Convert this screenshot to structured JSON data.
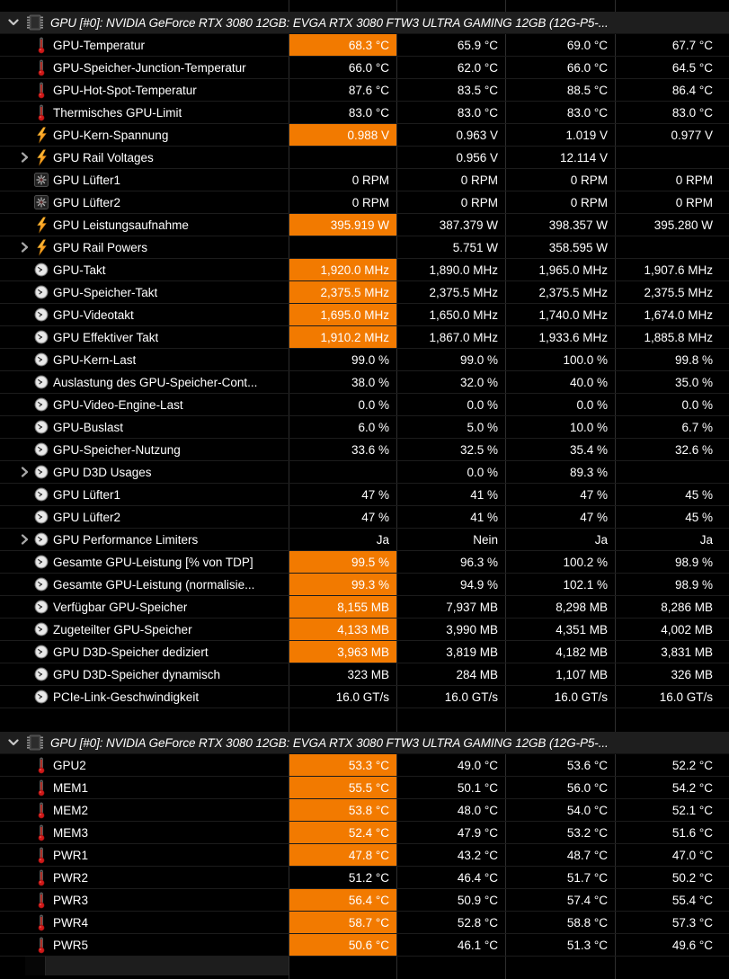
{
  "colors": {
    "highlight_orange": "#F27A00",
    "row_background": "#000000",
    "header_background": "#1E1E1E",
    "gridline": "#2E2E2E",
    "text": "#FFFFFF"
  },
  "column_meaning": [
    "current",
    "minimum",
    "maximum",
    "average"
  ],
  "sections": [
    {
      "header": "GPU [#0]: NVIDIA GeForce RTX 3080 12GB: EVGA RTX 3080 FTW3 ULTRA GAMING 12GB (12G-P5-...",
      "rows": [
        {
          "icon": "thermometer",
          "label": "GPU-Temperatur",
          "group": false,
          "hl": true,
          "values": [
            "68.3 °C",
            "65.9 °C",
            "69.0 °C",
            "67.7 °C"
          ]
        },
        {
          "icon": "thermometer",
          "label": "GPU-Speicher-Junction-Temperatur",
          "group": false,
          "hl": false,
          "values": [
            "66.0 °C",
            "62.0 °C",
            "66.0 °C",
            "64.5 °C"
          ]
        },
        {
          "icon": "thermometer",
          "label": "GPU-Hot-Spot-Temperatur",
          "group": false,
          "hl": false,
          "values": [
            "87.6 °C",
            "83.5 °C",
            "88.5 °C",
            "86.4 °C"
          ]
        },
        {
          "icon": "thermometer",
          "label": "Thermisches GPU-Limit",
          "group": false,
          "hl": false,
          "values": [
            "83.0 °C",
            "83.0 °C",
            "83.0 °C",
            "83.0 °C"
          ]
        },
        {
          "icon": "lightning",
          "label": "GPU-Kern-Spannung",
          "group": false,
          "hl": true,
          "values": [
            "0.988 V",
            "0.963 V",
            "1.019 V",
            "0.977 V"
          ]
        },
        {
          "icon": "lightning",
          "label": "GPU Rail Voltages",
          "group": true,
          "hl": false,
          "values": [
            "",
            "0.956 V",
            "12.114 V",
            ""
          ]
        },
        {
          "icon": "fan",
          "label": "GPU Lüfter1",
          "group": false,
          "hl": false,
          "values": [
            "0 RPM",
            "0 RPM",
            "0 RPM",
            "0 RPM"
          ]
        },
        {
          "icon": "fan",
          "label": "GPU Lüfter2",
          "group": false,
          "hl": false,
          "values": [
            "0 RPM",
            "0 RPM",
            "0 RPM",
            "0 RPM"
          ]
        },
        {
          "icon": "lightning",
          "label": "GPU Leistungsaufnahme",
          "group": false,
          "hl": true,
          "values": [
            "395.919 W",
            "387.379 W",
            "398.357 W",
            "395.280 W"
          ]
        },
        {
          "icon": "lightning",
          "label": "GPU Rail Powers",
          "group": true,
          "hl": false,
          "values": [
            "",
            "5.751 W",
            "358.595 W",
            ""
          ]
        },
        {
          "icon": "clock",
          "label": "GPU-Takt",
          "group": false,
          "hl": true,
          "values": [
            "1,920.0 MHz",
            "1,890.0 MHz",
            "1,965.0 MHz",
            "1,907.6 MHz"
          ]
        },
        {
          "icon": "clock",
          "label": "GPU-Speicher-Takt",
          "group": false,
          "hl": true,
          "values": [
            "2,375.5 MHz",
            "2,375.5 MHz",
            "2,375.5 MHz",
            "2,375.5 MHz"
          ]
        },
        {
          "icon": "clock",
          "label": "GPU-Videotakt",
          "group": false,
          "hl": true,
          "values": [
            "1,695.0 MHz",
            "1,650.0 MHz",
            "1,740.0 MHz",
            "1,674.0 MHz"
          ]
        },
        {
          "icon": "clock",
          "label": "GPU Effektiver Takt",
          "group": false,
          "hl": true,
          "values": [
            "1,910.2 MHz",
            "1,867.0 MHz",
            "1,933.6 MHz",
            "1,885.8 MHz"
          ]
        },
        {
          "icon": "clock",
          "label": "GPU-Kern-Last",
          "group": false,
          "hl": false,
          "values": [
            "99.0 %",
            "99.0 %",
            "100.0 %",
            "99.8 %"
          ]
        },
        {
          "icon": "clock",
          "label": "Auslastung des GPU-Speicher-Cont...",
          "group": false,
          "hl": false,
          "values": [
            "38.0 %",
            "32.0 %",
            "40.0 %",
            "35.0 %"
          ]
        },
        {
          "icon": "clock",
          "label": "GPU-Video-Engine-Last",
          "group": false,
          "hl": false,
          "values": [
            "0.0 %",
            "0.0 %",
            "0.0 %",
            "0.0 %"
          ]
        },
        {
          "icon": "clock",
          "label": "GPU-Buslast",
          "group": false,
          "hl": false,
          "values": [
            "6.0 %",
            "5.0 %",
            "10.0 %",
            "6.7 %"
          ]
        },
        {
          "icon": "clock",
          "label": "GPU-Speicher-Nutzung",
          "group": false,
          "hl": false,
          "values": [
            "33.6 %",
            "32.5 %",
            "35.4 %",
            "32.6 %"
          ]
        },
        {
          "icon": "clock",
          "label": "GPU D3D Usages",
          "group": true,
          "hl": false,
          "values": [
            "",
            "0.0 %",
            "89.3 %",
            ""
          ]
        },
        {
          "icon": "clock",
          "label": "GPU Lüfter1",
          "group": false,
          "hl": false,
          "values": [
            "47 %",
            "41 %",
            "47 %",
            "45 %"
          ]
        },
        {
          "icon": "clock",
          "label": "GPU Lüfter2",
          "group": false,
          "hl": false,
          "values": [
            "47 %",
            "41 %",
            "47 %",
            "45 %"
          ]
        },
        {
          "icon": "clock",
          "label": "GPU Performance Limiters",
          "group": true,
          "hl": false,
          "values": [
            "Ja",
            "Nein",
            "Ja",
            "Ja"
          ]
        },
        {
          "icon": "clock",
          "label": "Gesamte GPU-Leistung [% von TDP]",
          "group": false,
          "hl": true,
          "values": [
            "99.5 %",
            "96.3 %",
            "100.2 %",
            "98.9 %"
          ]
        },
        {
          "icon": "clock",
          "label": "Gesamte GPU-Leistung (normalisie...",
          "group": false,
          "hl": true,
          "values": [
            "99.3 %",
            "94.9 %",
            "102.1 %",
            "98.9 %"
          ]
        },
        {
          "icon": "clock",
          "label": "Verfügbar GPU-Speicher",
          "group": false,
          "hl": true,
          "values": [
            "8,155 MB",
            "7,937 MB",
            "8,298 MB",
            "8,286 MB"
          ]
        },
        {
          "icon": "clock",
          "label": "Zugeteilter GPU-Speicher",
          "group": false,
          "hl": true,
          "values": [
            "4,133 MB",
            "3,990 MB",
            "4,351 MB",
            "4,002 MB"
          ]
        },
        {
          "icon": "clock",
          "label": "GPU D3D-Speicher dediziert",
          "group": false,
          "hl": true,
          "values": [
            "3,963 MB",
            "3,819 MB",
            "4,182 MB",
            "3,831 MB"
          ]
        },
        {
          "icon": "clock",
          "label": "GPU D3D-Speicher dynamisch",
          "group": false,
          "hl": false,
          "values": [
            "323 MB",
            "284 MB",
            "1,107 MB",
            "326 MB"
          ]
        },
        {
          "icon": "clock",
          "label": "PCIe-Link-Geschwindigkeit",
          "group": false,
          "hl": false,
          "values": [
            "16.0 GT/s",
            "16.0 GT/s",
            "16.0 GT/s",
            "16.0 GT/s"
          ]
        }
      ]
    },
    {
      "header": "GPU [#0]: NVIDIA GeForce RTX 3080 12GB: EVGA RTX 3080 FTW3 ULTRA GAMING 12GB (12G-P5-...",
      "rows": [
        {
          "icon": "thermometer",
          "label": "GPU2",
          "group": false,
          "hl": true,
          "values": [
            "53.3 °C",
            "49.0 °C",
            "53.6 °C",
            "52.2 °C"
          ]
        },
        {
          "icon": "thermometer",
          "label": "MEM1",
          "group": false,
          "hl": true,
          "values": [
            "55.5 °C",
            "50.1 °C",
            "56.0 °C",
            "54.2 °C"
          ]
        },
        {
          "icon": "thermometer",
          "label": "MEM2",
          "group": false,
          "hl": true,
          "values": [
            "53.8 °C",
            "48.0 °C",
            "54.0 °C",
            "52.1 °C"
          ]
        },
        {
          "icon": "thermometer",
          "label": "MEM3",
          "group": false,
          "hl": true,
          "values": [
            "52.4 °C",
            "47.9 °C",
            "53.2 °C",
            "51.6 °C"
          ]
        },
        {
          "icon": "thermometer",
          "label": "PWR1",
          "group": false,
          "hl": true,
          "values": [
            "47.8 °C",
            "43.2 °C",
            "48.7 °C",
            "47.0 °C"
          ]
        },
        {
          "icon": "thermometer",
          "label": "PWR2",
          "group": false,
          "hl": false,
          "values": [
            "51.2 °C",
            "46.4 °C",
            "51.7 °C",
            "50.2 °C"
          ]
        },
        {
          "icon": "thermometer",
          "label": "PWR3",
          "group": false,
          "hl": true,
          "values": [
            "56.4 °C",
            "50.9 °C",
            "57.4 °C",
            "55.4 °C"
          ]
        },
        {
          "icon": "thermometer",
          "label": "PWR4",
          "group": false,
          "hl": true,
          "values": [
            "58.7 °C",
            "52.8 °C",
            "58.8 °C",
            "57.3 °C"
          ]
        },
        {
          "icon": "thermometer",
          "label": "PWR5",
          "group": false,
          "hl": true,
          "values": [
            "50.6 °C",
            "46.1 °C",
            "51.3 °C",
            "49.6 °C"
          ]
        }
      ]
    }
  ]
}
